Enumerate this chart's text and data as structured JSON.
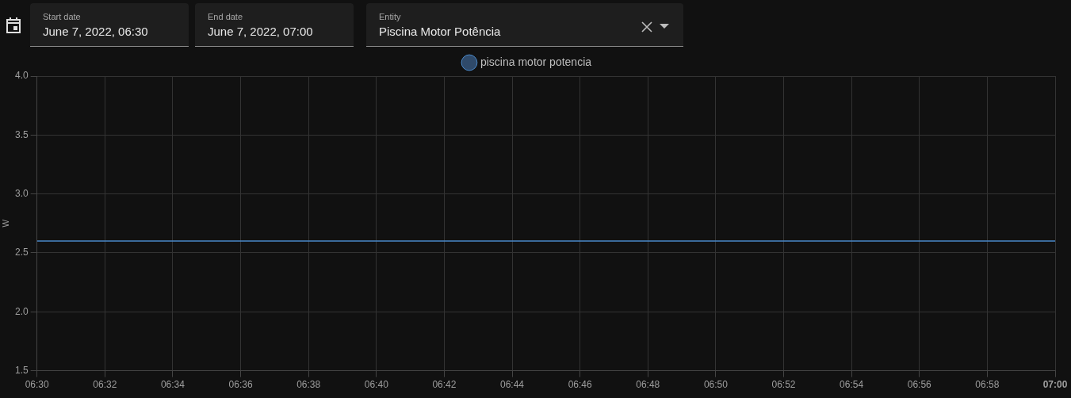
{
  "chart_data": {
    "type": "line",
    "ylabel": "W",
    "annotations": [
      "Start date",
      "June 7, 2022, 06:30",
      "End date",
      "June 7, 2022, 07:00",
      "Entity",
      "Piscina Motor Potência"
    ],
    "series": [
      {
        "name": "piscina motor potencia",
        "color": "#4a88c8",
        "x": [
          6.5,
          7.0
        ],
        "values": [
          2.6,
          2.6
        ]
      }
    ],
    "xlim": [
      6.5,
      7.0
    ],
    "xticks": [
      {
        "value": 6.5,
        "label": "06:30"
      },
      {
        "value": 6.533333,
        "label": "06:32"
      },
      {
        "value": 6.566667,
        "label": "06:34"
      },
      {
        "value": 6.6,
        "label": "06:36"
      },
      {
        "value": 6.633333,
        "label": "06:38"
      },
      {
        "value": 6.666667,
        "label": "06:40"
      },
      {
        "value": 6.7,
        "label": "06:42"
      },
      {
        "value": 6.733333,
        "label": "06:44"
      },
      {
        "value": 6.766667,
        "label": "06:46"
      },
      {
        "value": 6.8,
        "label": "06:48"
      },
      {
        "value": 6.833333,
        "label": "06:50"
      },
      {
        "value": 6.866667,
        "label": "06:52"
      },
      {
        "value": 6.9,
        "label": "06:54"
      },
      {
        "value": 6.933333,
        "label": "06:56"
      },
      {
        "value": 6.966667,
        "label": "06:58"
      },
      {
        "value": 7.0,
        "label": "07:00"
      }
    ],
    "ylim": [
      1.5,
      4.0
    ],
    "yticks": [
      {
        "value": 1.5,
        "label": "1.5"
      },
      {
        "value": 2,
        "label": "2.0"
      },
      {
        "value": 2.5,
        "label": "2.5"
      },
      {
        "value": 3,
        "label": "3.0"
      },
      {
        "value": 3.5,
        "label": "3.5"
      },
      {
        "value": 4,
        "label": "4.0"
      }
    ],
    "grid": true,
    "legend": "top",
    "marker": "none",
    "line_style": "solid"
  }
}
